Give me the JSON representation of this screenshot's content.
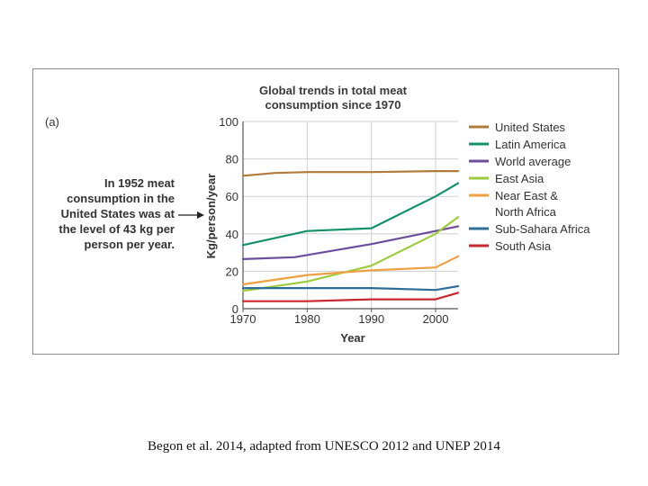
{
  "panel_label": "(a)",
  "annotation": "In 1952 meat consumption in the United States was at the level of 43 kg per person per year.",
  "caption": "Begon et al. 2014, adapted from UNESCO 2012 and UNEP 2014",
  "chart_data": {
    "type": "line",
    "title": "Global trends in total meat consumption since 1970",
    "xlabel": "Year",
    "ylabel": "Kg/person/year",
    "xlim": [
      1970,
      2003.5
    ],
    "ylim": [
      0,
      100
    ],
    "xticks": [
      1970,
      1980,
      1990,
      2000
    ],
    "yticks": [
      0,
      20,
      40,
      60,
      80,
      100
    ],
    "legend_position": "right",
    "grid": true,
    "series": [
      {
        "name": "United States",
        "color": "#b07a3a",
        "points": [
          [
            1970,
            71
          ],
          [
            1975,
            72.5
          ],
          [
            1980,
            73
          ],
          [
            1990,
            73
          ],
          [
            2000,
            73.5
          ],
          [
            2003.5,
            73.5
          ]
        ]
      },
      {
        "name": "Latin America",
        "color": "#13926a",
        "points": [
          [
            1970,
            34
          ],
          [
            1980,
            41.5
          ],
          [
            1990,
            43
          ],
          [
            2000,
            60
          ],
          [
            2003.5,
            67
          ]
        ]
      },
      {
        "name": "World average",
        "color": "#6d4e9e",
        "points": [
          [
            1970,
            26.5
          ],
          [
            1978,
            27.5
          ],
          [
            1990,
            34.5
          ],
          [
            2000,
            41.5
          ],
          [
            2003.5,
            44
          ]
        ]
      },
      {
        "name": "East Asia",
        "color": "#9ccc3c",
        "points": [
          [
            1970,
            9.5
          ],
          [
            1980,
            14.5
          ],
          [
            1990,
            23
          ],
          [
            2000,
            40
          ],
          [
            2003.5,
            49
          ]
        ]
      },
      {
        "name": "Near East & North Africa",
        "color": "#f0a040",
        "points": [
          [
            1970,
            13
          ],
          [
            1980,
            18
          ],
          [
            1990,
            20.5
          ],
          [
            2000,
            22
          ],
          [
            2003.5,
            28
          ]
        ]
      },
      {
        "name": "Sub-Sahara Africa",
        "color": "#2e6e96",
        "points": [
          [
            1970,
            11
          ],
          [
            1980,
            11
          ],
          [
            1990,
            11
          ],
          [
            2000,
            10
          ],
          [
            2003.5,
            12
          ]
        ]
      },
      {
        "name": "South Asia",
        "color": "#c8282e",
        "points": [
          [
            1970,
            4
          ],
          [
            1980,
            4
          ],
          [
            1990,
            5
          ],
          [
            2000,
            5
          ],
          [
            2003.5,
            8.5
          ]
        ]
      }
    ]
  }
}
